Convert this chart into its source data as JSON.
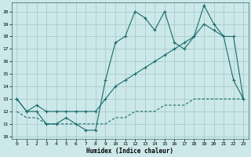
{
  "xlabel": "Humidex (Indice chaleur)",
  "background_color": "#cce8e8",
  "grid_color": "#aacccc",
  "line_color": "#1a6b6b",
  "x_ticks": [
    0,
    1,
    2,
    3,
    4,
    5,
    6,
    7,
    8,
    9,
    10,
    11,
    12,
    13,
    14,
    15,
    16,
    17,
    18,
    19,
    20,
    21,
    22,
    23
  ],
  "y_ticks": [
    10,
    11,
    12,
    13,
    14,
    15,
    16,
    17,
    18,
    19,
    20
  ],
  "ylim": [
    9.8,
    20.7
  ],
  "xlim": [
    -0.5,
    23.5
  ],
  "series": [
    {
      "x": [
        0,
        1,
        2,
        3,
        4,
        5,
        6,
        7,
        8,
        9,
        10,
        11,
        12,
        13,
        14,
        15,
        16,
        17,
        18,
        19,
        20,
        21,
        22,
        23
      ],
      "y": [
        13,
        12,
        12,
        11,
        11,
        11.5,
        11,
        10.5,
        10.5,
        14.5,
        17.5,
        18,
        20,
        19.5,
        18.5,
        20,
        17.5,
        17,
        18,
        20.5,
        19,
        18,
        14.5,
        13
      ],
      "style": "-",
      "marker": "+"
    },
    {
      "x": [
        0,
        1,
        2,
        3,
        4,
        5,
        6,
        7,
        8,
        9,
        10,
        11,
        12,
        13,
        14,
        15,
        16,
        17,
        18,
        19,
        20,
        21,
        22,
        23
      ],
      "y": [
        13,
        12,
        12.5,
        12,
        12,
        12,
        12,
        12,
        12,
        13,
        14,
        14.5,
        15,
        15.5,
        16,
        16.5,
        17,
        17.5,
        18,
        19,
        18.5,
        18,
        18,
        13
      ],
      "style": "-",
      "marker": "+"
    },
    {
      "x": [
        0,
        1,
        2,
        3,
        4,
        5,
        6,
        7,
        8,
        9,
        10,
        11,
        12,
        13,
        14,
        15,
        16,
        17,
        18,
        19,
        20,
        21,
        22,
        23
      ],
      "y": [
        12,
        11.5,
        11.5,
        11,
        11,
        11,
        11,
        11,
        11,
        11,
        11.5,
        11.5,
        12,
        12,
        12,
        12.5,
        12.5,
        12.5,
        13,
        13,
        13,
        13,
        13,
        13
      ],
      "style": "--",
      "marker": null
    }
  ]
}
